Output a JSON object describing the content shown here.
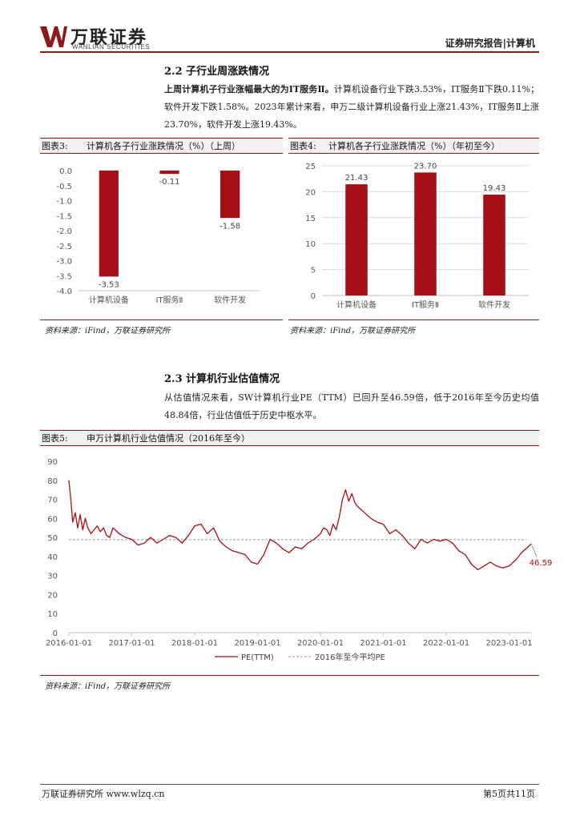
{
  "header": {
    "logo_cn": "万联证券",
    "logo_en": "WANLIAN SECURITIES",
    "report_tag": "证券研究报告|计算机",
    "brand_color": "#8B1A1A"
  },
  "section22": {
    "title": "2.2  子行业周涨跌情况",
    "lead": "上周计算机子行业涨幅最大的为IT服务Ⅱ。",
    "body": "计算机设备行业下跌3.53%，IT服务Ⅱ下跌0.11%；软件开发下跌1.58%。2023年累计来看，申万二级计算机设备行业上涨21.43%，IT服务Ⅱ上涨23.70%，软件开发上涨19.43%。"
  },
  "fig3": {
    "label": "图表3:",
    "title": "计算机各子行业涨跌情况（%）（上周）",
    "source": "资料来源：iFind，万联证券研究所"
  },
  "fig4": {
    "label": "图表4:",
    "title": "计算机各子行业涨跌情况（%）（年初至今）",
    "source": "资料来源：iFind，万联证券研究所"
  },
  "section23": {
    "title": "2.3  计算机行业估值情况",
    "body": "从估值情况来看，SW计算机行业PE（TTM）已回升至46.59倍，低于2016年至今历史均值48.84倍，行业估值低于历史中枢水平。"
  },
  "fig5": {
    "label": "图表5:",
    "title": "申万计算机行业估值情况（2016年至今）",
    "source": "资料来源：iFind，万联证券研究所"
  },
  "footer": {
    "left": "万联证券研究所 www.wlzq.cn",
    "right": "第5页共11页"
  },
  "chart_data": [
    {
      "type": "bar",
      "title": "计算机各子行业涨跌情况（%）（上周）",
      "categories": [
        "计算机设备",
        "IT服务Ⅱ",
        "软件开发"
      ],
      "values": [
        -3.53,
        -0.11,
        -1.58
      ],
      "value_labels": [
        "-3.53",
        "-0.11",
        "-1.58"
      ],
      "ylim": [
        -4.0,
        0.0
      ],
      "yticks": [
        "0.0",
        "-0.5",
        "-1.0",
        "-1.5",
        "-2.0",
        "-2.5",
        "-3.0",
        "-3.5",
        "-4.0"
      ],
      "bar_color": "#A50F15",
      "grid": false
    },
    {
      "type": "bar",
      "title": "计算机各子行业涨跌情况（%）（年初至今）",
      "categories": [
        "计算机设备",
        "IT服务Ⅱ",
        "软件开发"
      ],
      "values": [
        21.43,
        23.7,
        19.43
      ],
      "value_labels": [
        "21.43",
        "23.70",
        "19.43"
      ],
      "ylim": [
        0,
        25
      ],
      "yticks": [
        "0",
        "5",
        "10",
        "15",
        "20",
        "25"
      ],
      "bar_color": "#A50F15",
      "grid": true
    },
    {
      "type": "line",
      "title": "申万计算机行业估值情况（2016年至今）",
      "x_range": [
        2016.0,
        2023.35
      ],
      "xticks": [
        "2016-01-01",
        "2017-01-01",
        "2018-01-01",
        "2019-01-01",
        "2020-01-01",
        "2021-01-01",
        "2022-01-01",
        "2023-01-01"
      ],
      "ylim": [
        0,
        90
      ],
      "yticks": [
        "0",
        "10",
        "20",
        "30",
        "40",
        "50",
        "60",
        "70",
        "80",
        "90"
      ],
      "series": [
        {
          "name": "PE(TTM)",
          "color": "#A50F15",
          "x": [
            2016.0,
            2016.03,
            2016.06,
            2016.1,
            2016.14,
            2016.18,
            2016.22,
            2016.26,
            2016.3,
            2016.35,
            2016.4,
            2016.45,
            2016.5,
            2016.55,
            2016.6,
            2016.65,
            2016.7,
            2016.8,
            2016.9,
            2017.0,
            2017.1,
            2017.2,
            2017.3,
            2017.4,
            2017.5,
            2017.6,
            2017.7,
            2017.8,
            2017.9,
            2018.0,
            2018.1,
            2018.2,
            2018.3,
            2018.4,
            2018.5,
            2018.6,
            2018.7,
            2018.8,
            2018.9,
            2019.0,
            2019.1,
            2019.2,
            2019.3,
            2019.4,
            2019.5,
            2019.6,
            2019.7,
            2019.8,
            2019.9,
            2020.0,
            2020.05,
            2020.1,
            2020.15,
            2020.2,
            2020.25,
            2020.3,
            2020.35,
            2020.4,
            2020.45,
            2020.5,
            2020.55,
            2020.6,
            2020.7,
            2020.8,
            2020.9,
            2021.0,
            2021.1,
            2021.2,
            2021.3,
            2021.4,
            2021.5,
            2021.6,
            2021.7,
            2021.8,
            2021.9,
            2022.0,
            2022.1,
            2022.2,
            2022.3,
            2022.4,
            2022.5,
            2022.6,
            2022.7,
            2022.8,
            2022.9,
            2023.0,
            2023.1,
            2023.2,
            2023.3,
            2023.35
          ],
          "y": [
            80,
            70,
            58,
            63,
            55,
            62,
            54,
            60,
            55,
            52,
            54,
            56,
            53,
            55,
            51,
            50,
            55,
            52,
            50,
            49,
            46,
            47,
            50,
            47,
            49,
            51,
            50,
            47,
            51,
            56,
            57,
            52,
            55,
            48,
            45,
            43,
            42,
            41,
            37,
            36,
            41,
            49,
            47,
            44,
            42,
            45,
            44,
            47,
            49,
            52,
            55,
            54,
            51,
            57,
            54,
            61,
            70,
            75,
            69,
            73,
            68,
            66,
            63,
            60,
            58,
            57,
            52,
            54,
            51,
            47,
            44,
            49,
            47,
            49,
            48,
            49,
            47,
            43,
            41,
            36,
            33,
            35,
            37,
            35,
            34,
            35,
            38,
            42,
            45,
            46.59
          ]
        },
        {
          "name": "2016年至今平均PE",
          "color": "#999999",
          "dashed": true,
          "value": 48.84
        }
      ],
      "end_label": "46.59",
      "legend": "bottom-center"
    }
  ]
}
